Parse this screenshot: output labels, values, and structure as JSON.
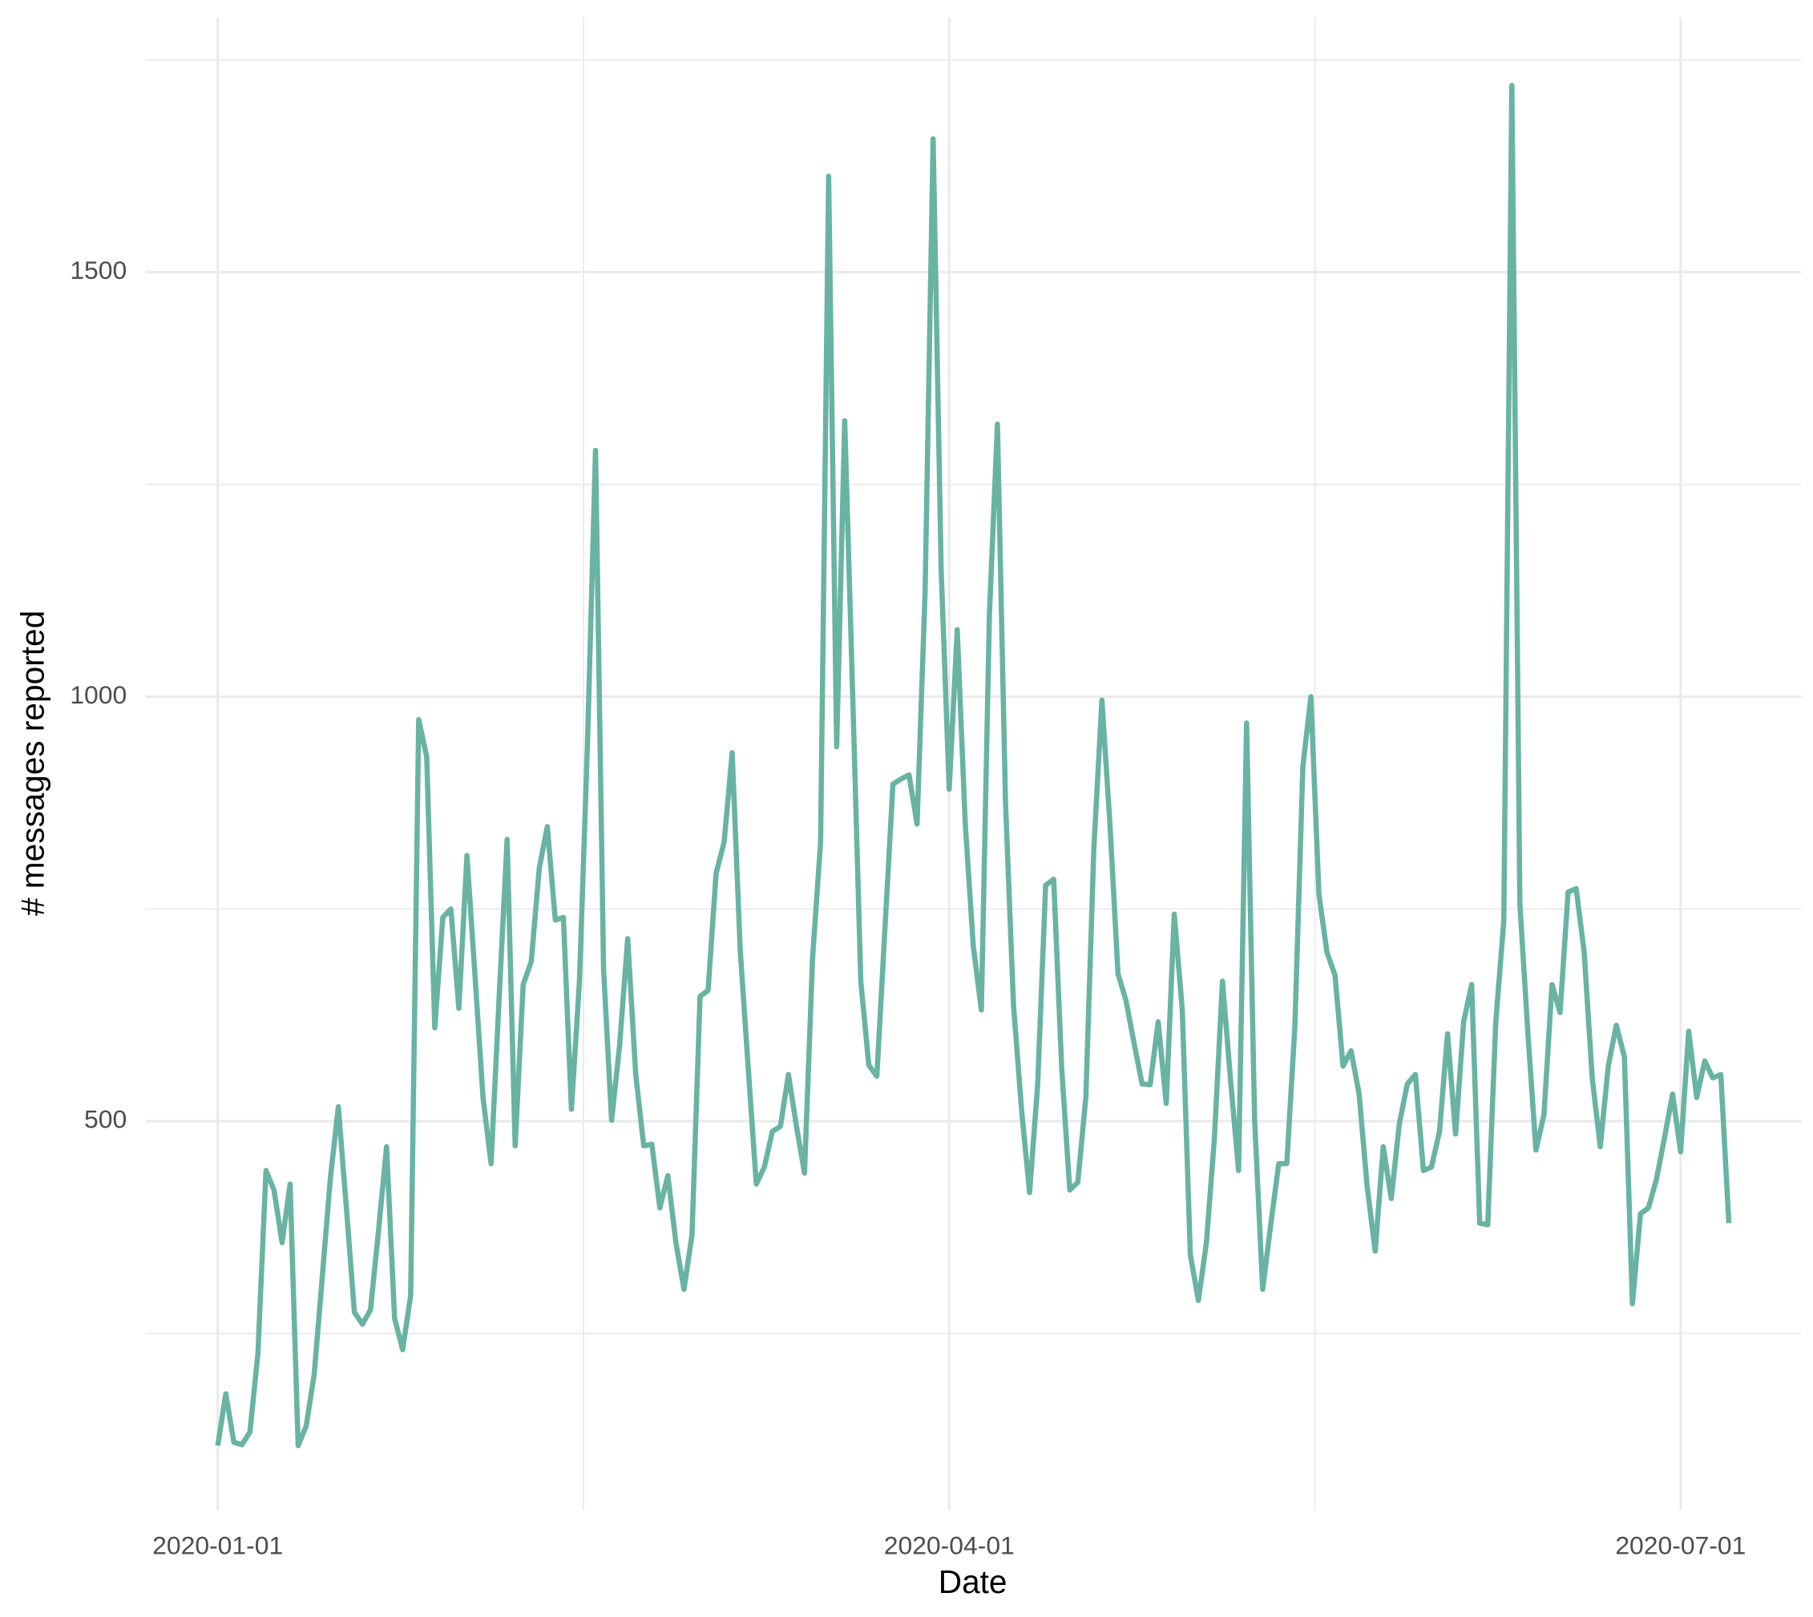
{
  "chart_data": {
    "type": "line",
    "x_label": "Date",
    "y_label": "# messages reported",
    "x": [
      "2020-01-01",
      "2020-01-02",
      "2020-01-03",
      "2020-01-04",
      "2020-01-05",
      "2020-01-06",
      "2020-01-07",
      "2020-01-08",
      "2020-01-09",
      "2020-01-10",
      "2020-01-11",
      "2020-01-12",
      "2020-01-13",
      "2020-01-14",
      "2020-01-15",
      "2020-01-16",
      "2020-01-17",
      "2020-01-18",
      "2020-01-19",
      "2020-01-20",
      "2020-01-21",
      "2020-01-22",
      "2020-01-23",
      "2020-01-24",
      "2020-01-25",
      "2020-01-26",
      "2020-01-27",
      "2020-01-28",
      "2020-01-29",
      "2020-01-30",
      "2020-01-31",
      "2020-02-01",
      "2020-02-02",
      "2020-02-03",
      "2020-02-04",
      "2020-02-05",
      "2020-02-06",
      "2020-02-07",
      "2020-02-08",
      "2020-02-09",
      "2020-02-10",
      "2020-02-11",
      "2020-02-12",
      "2020-02-13",
      "2020-02-14",
      "2020-02-15",
      "2020-02-16",
      "2020-02-17",
      "2020-02-18",
      "2020-02-19",
      "2020-02-20",
      "2020-02-21",
      "2020-02-22",
      "2020-02-23",
      "2020-02-24",
      "2020-02-25",
      "2020-02-26",
      "2020-02-27",
      "2020-02-28",
      "2020-02-29",
      "2020-03-01",
      "2020-03-02",
      "2020-03-03",
      "2020-03-04",
      "2020-03-05",
      "2020-03-06",
      "2020-03-07",
      "2020-03-08",
      "2020-03-09",
      "2020-03-10",
      "2020-03-11",
      "2020-03-12",
      "2020-03-13",
      "2020-03-14",
      "2020-03-15",
      "2020-03-16",
      "2020-03-17",
      "2020-03-18",
      "2020-03-19",
      "2020-03-20",
      "2020-03-21",
      "2020-03-22",
      "2020-03-23",
      "2020-03-24",
      "2020-03-25",
      "2020-03-26",
      "2020-03-27",
      "2020-03-28",
      "2020-03-29",
      "2020-03-30",
      "2020-03-31",
      "2020-04-01",
      "2020-04-02",
      "2020-04-03",
      "2020-04-04",
      "2020-04-05",
      "2020-04-06",
      "2020-04-07",
      "2020-04-08",
      "2020-04-09",
      "2020-04-10",
      "2020-04-11",
      "2020-04-12",
      "2020-04-13",
      "2020-04-14",
      "2020-04-15",
      "2020-04-16",
      "2020-04-17",
      "2020-04-18",
      "2020-04-19",
      "2020-04-20",
      "2020-04-21",
      "2020-04-22",
      "2020-04-23",
      "2020-04-24",
      "2020-04-25",
      "2020-04-26",
      "2020-04-27",
      "2020-04-28",
      "2020-04-29",
      "2020-04-30",
      "2020-05-01",
      "2020-05-02",
      "2020-05-03",
      "2020-05-04",
      "2020-05-05",
      "2020-05-06",
      "2020-05-07",
      "2020-05-08",
      "2020-05-09",
      "2020-05-10",
      "2020-05-11",
      "2020-05-12",
      "2020-05-13",
      "2020-05-14",
      "2020-05-15",
      "2020-05-16",
      "2020-05-17",
      "2020-05-18",
      "2020-05-19",
      "2020-05-20",
      "2020-05-21",
      "2020-05-22",
      "2020-05-23",
      "2020-05-24",
      "2020-05-25",
      "2020-05-26",
      "2020-05-27",
      "2020-05-28",
      "2020-05-29",
      "2020-05-30",
      "2020-05-31",
      "2020-06-01",
      "2020-06-02",
      "2020-06-03",
      "2020-06-04",
      "2020-06-05",
      "2020-06-06",
      "2020-06-07",
      "2020-06-08",
      "2020-06-09",
      "2020-06-10",
      "2020-06-11",
      "2020-06-12",
      "2020-06-13",
      "2020-06-14",
      "2020-06-15",
      "2020-06-16",
      "2020-06-17",
      "2020-06-18",
      "2020-06-19",
      "2020-06-20",
      "2020-06-21",
      "2020-06-22",
      "2020-06-23",
      "2020-06-24",
      "2020-06-25",
      "2020-06-26",
      "2020-06-27",
      "2020-06-28",
      "2020-06-29",
      "2020-06-30",
      "2020-07-01",
      "2020-07-02",
      "2020-07-03",
      "2020-07-04",
      "2020-07-05",
      "2020-07-06",
      "2020-07-07"
    ],
    "series": [
      {
        "color": "#69b3a2",
        "values": [
          118,
          179,
          122,
          119,
          134,
          227,
          442,
          419,
          357,
          426,
          118,
          141,
          202,
          316,
          432,
          517,
          398,
          275,
          261,
          278,
          371,
          470,
          268,
          231,
          295,
          973,
          929,
          610,
          740,
          750,
          633,
          813,
          672,
          528,
          450,
          644,
          832,
          471,
          661,
          688,
          798,
          847,
          737,
          740,
          514,
          665,
          945,
          1290,
          679,
          501,
          590,
          715,
          555,
          471,
          473,
          398,
          436,
          357,
          302,
          366,
          647,
          654,
          792,
          829,
          934,
          702,
          562,
          426,
          446,
          488,
          494,
          555,
          494,
          439,
          692,
          829,
          1613,
          941,
          1325,
          1000,
          665,
          566,
          553,
          726,
          897,
          903,
          908,
          850,
          1123,
          1657,
          1150,
          891,
          1079,
          850,
          706,
          631,
          1096,
          1321,
          877,
          637,
          514,
          416,
          542,
          778,
          785,
          562,
          419,
          428,
          528,
          822,
          996,
          850,
          674,
          642,
          592,
          544,
          543,
          617,
          521,
          744,
          631,
          343,
          289,
          357,
          481,
          665,
          549,
          442,
          969,
          501,
          302,
          378,
          450,
          450,
          610,
          918,
          1000,
          767,
          699,
          672,
          565,
          583,
          532,
          423,
          347,
          470,
          409,
          497,
          544,
          555,
          442,
          446,
          488,
          603,
          485,
          617,
          661,
          380,
          378,
          617,
          736,
          1720,
          756,
          603,
          466,
          508,
          661,
          628,
          770,
          774,
          699,
          551,
          470,
          565,
          613,
          576,
          285,
          391,
          398,
          432,
          481,
          532,
          464,
          606,
          528,
          571,
          551,
          555,
          380
        ]
      }
    ],
    "xlim": [
      "2019-12-23",
      "2020-07-16"
    ],
    "xticks": [
      "2020-01-01",
      "2020-04-01",
      "2020-07-01"
    ],
    "ylim": [
      42,
      1800
    ],
    "yticks": [
      500,
      1000,
      1500
    ],
    "grid": true
  }
}
